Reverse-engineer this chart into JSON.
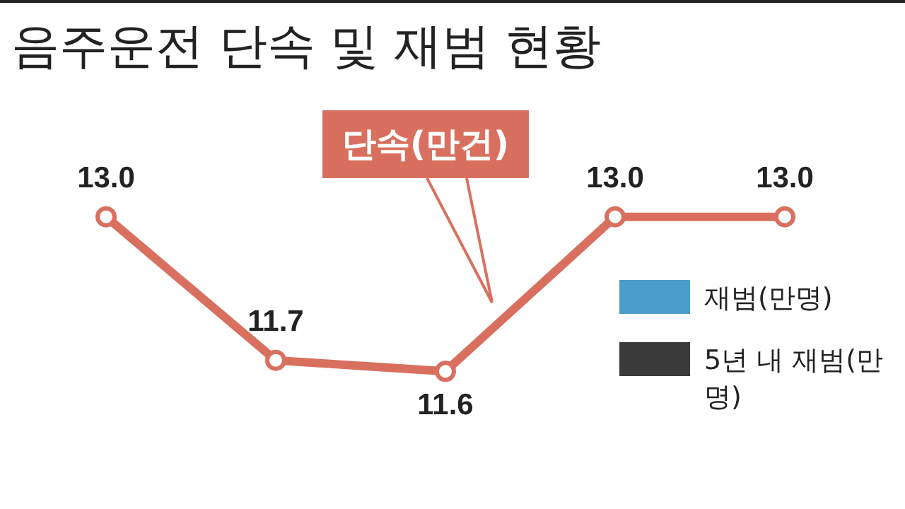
{
  "chart_data": {
    "type": "line",
    "title": "음주운전 단속 및 재범 현황",
    "categories": [
      null,
      null,
      null,
      null,
      null
    ],
    "series": [
      {
        "name": "단속(만건)",
        "color": "#d9705f",
        "values": [
          13.0,
          11.7,
          11.6,
          13.0,
          13.0
        ],
        "value_labels": [
          "13.0",
          "11.7",
          "11.6",
          "13.0",
          "13.0"
        ]
      }
    ],
    "annotations": [
      "재범(만명)",
      "5년 내 재범(만명)"
    ],
    "marker": "circle",
    "tick_labels": false
  }
}
